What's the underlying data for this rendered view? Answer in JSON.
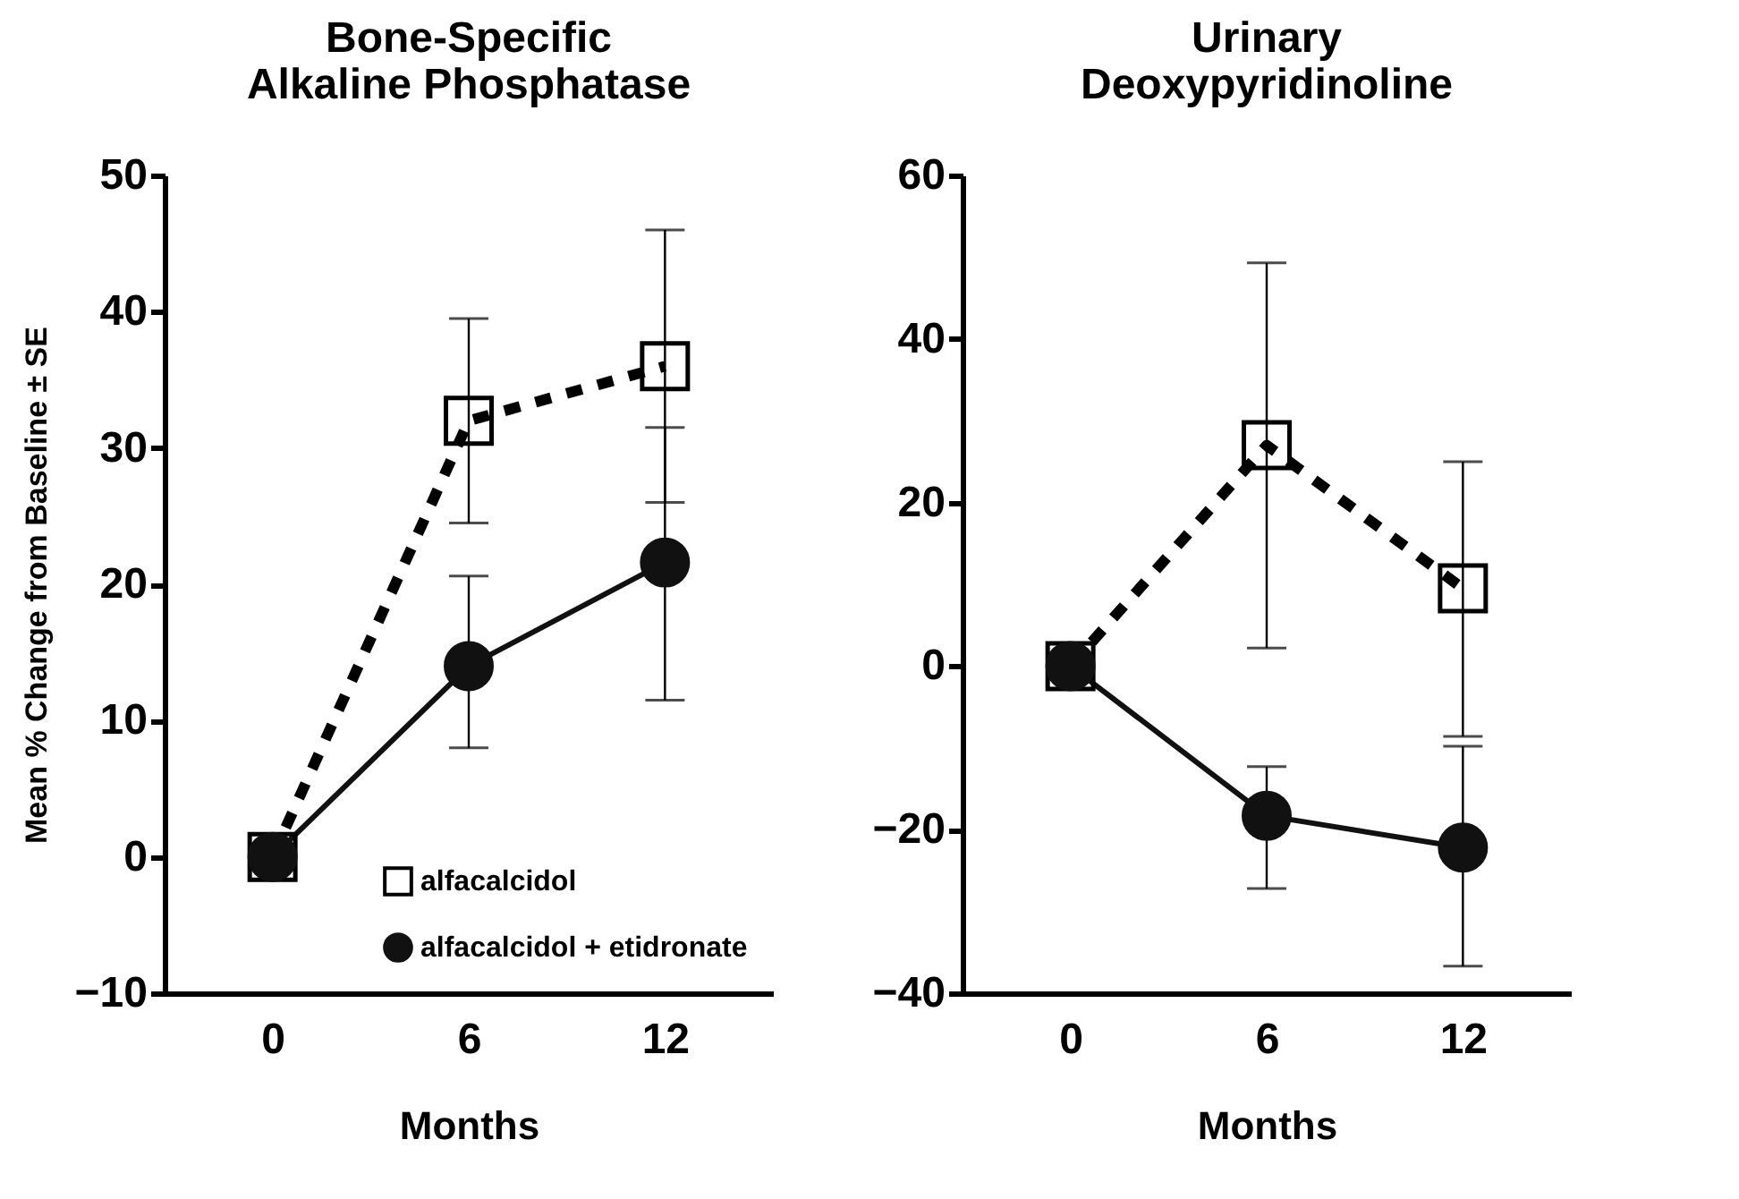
{
  "chart_data": [
    {
      "type": "line",
      "title": "Bone-Specific\nAlkaline Phosphatase",
      "xlabel": "Months",
      "ylabel": "Mean % Change from Baseline ± SE",
      "categories": [
        "0",
        "6",
        "12"
      ],
      "ylim": [
        -10,
        50
      ],
      "yticks": [
        -10,
        0,
        10,
        20,
        30,
        40,
        50
      ],
      "legend": "bottom right",
      "grid": false,
      "series": [
        {
          "name": "alfacalcidol",
          "color": "#000000",
          "marker": "square",
          "line_style": "dashed",
          "values": [
            0,
            32,
            36
          ],
          "errors": [
            null,
            [
              24.5,
              39.5
            ],
            [
              26,
              46
            ]
          ]
        },
        {
          "name": "alfacalcidol + etidronate",
          "color": "#111111",
          "marker": "circle",
          "line_style": "solid",
          "values": [
            0,
            14,
            21.6
          ],
          "errors": [
            null,
            [
              8,
              20.6
            ],
            [
              11.5,
              31.5
            ]
          ]
        }
      ]
    },
    {
      "type": "line",
      "title": "Urinary\nDeoxypyridinoline",
      "xlabel": "Months",
      "categories": [
        "0",
        "6",
        "12"
      ],
      "ylim": [
        -40,
        60
      ],
      "yticks": [
        -40,
        -20,
        0,
        20,
        40,
        60
      ],
      "grid": false,
      "series": [
        {
          "color": "#000000",
          "marker": "square",
          "line_style": "dashed",
          "values": [
            0,
            27,
            9.5
          ],
          "errors": [
            null,
            [
              2.2,
              49.3
            ],
            [
              -8.6,
              25
            ]
          ]
        },
        {
          "color": "#111111",
          "marker": "circle",
          "line_style": "solid",
          "values": [
            0,
            -18.3,
            -22.2
          ],
          "errors": [
            null,
            [
              -27.2,
              -12.3
            ],
            [
              -36.7,
              -9.8
            ]
          ]
        }
      ]
    }
  ]
}
